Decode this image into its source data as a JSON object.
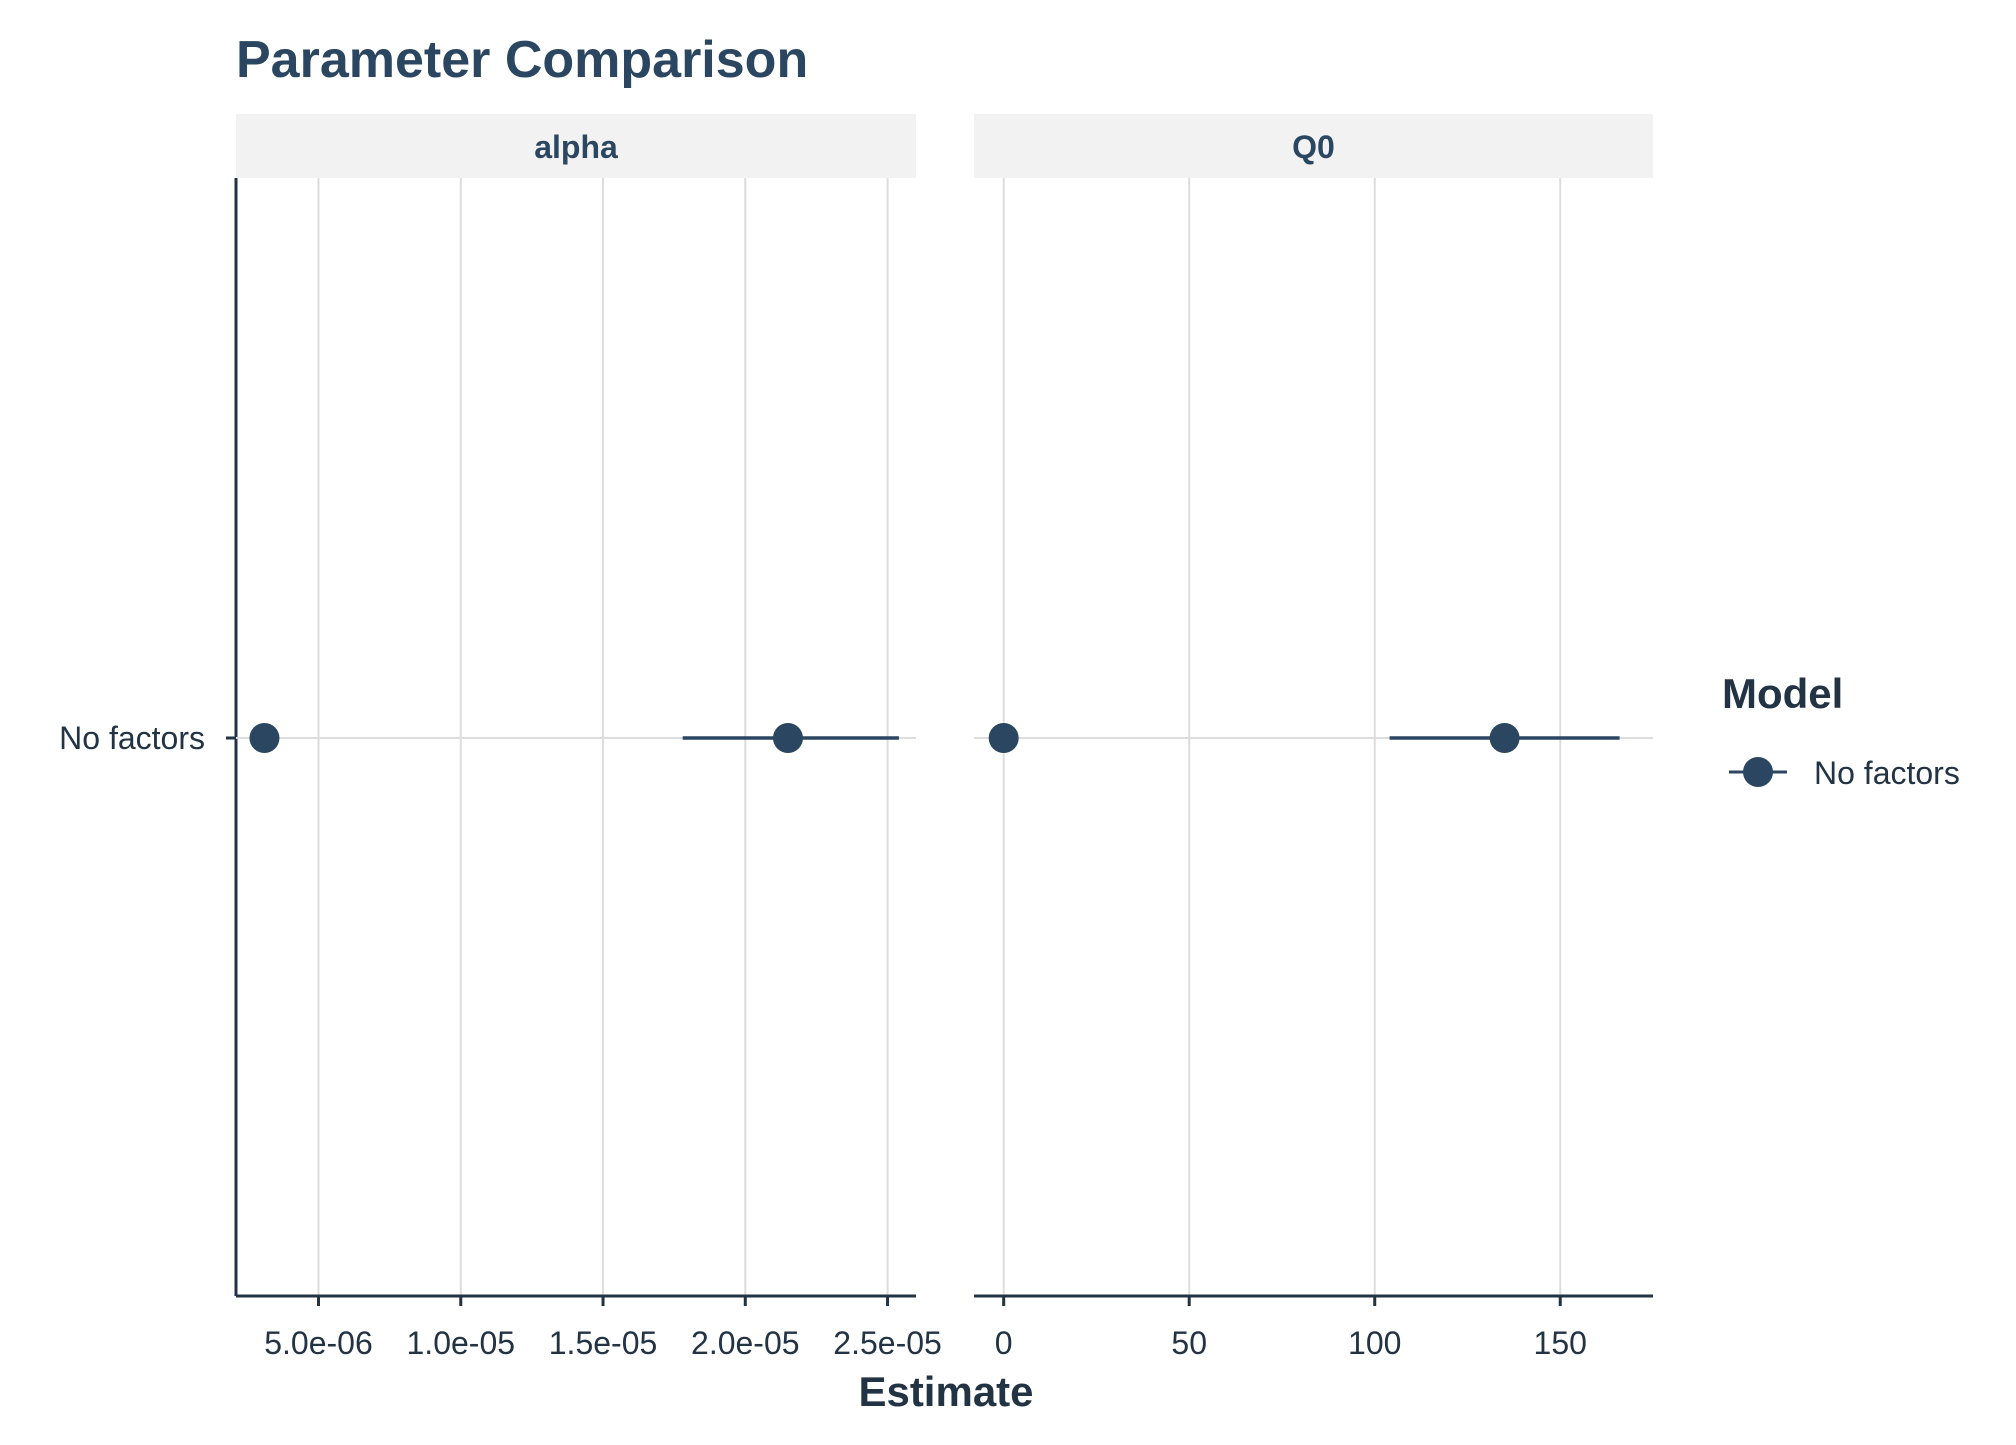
{
  "chart_data": {
    "type": "scatter",
    "title": "Parameter Comparison",
    "xlabel": "Estimate",
    "ylabel": "",
    "categories": [
      "No factors"
    ],
    "grid": true,
    "legend": {
      "title": "Model",
      "position": "right",
      "entries": [
        "No factors"
      ]
    },
    "colors": {
      "series": "#2b4660",
      "text": "#223344",
      "grid": "#dddddd",
      "strip": "#f2f2f2"
    },
    "panels": [
      {
        "name": "alpha",
        "xlim": [
          2.1e-06,
          2.6e-05
        ],
        "ticks": [
          5e-06,
          1e-05,
          1.5e-05,
          2e-05,
          2.5e-05
        ],
        "tick_labels": [
          "5.0e-06",
          "1.0e-05",
          "1.5e-05",
          "2.0e-05",
          "2.5e-05"
        ],
        "series": [
          {
            "name": "No factors",
            "category": "No factors",
            "estimate": 3.1e-06
          },
          {
            "name": "No factors",
            "category": "No factors",
            "estimate": 2.15e-05,
            "ci": [
              1.78e-05,
              2.54e-05
            ]
          }
        ]
      },
      {
        "name": "Q0",
        "xlim": [
          -8,
          175
        ],
        "ticks": [
          0,
          50,
          100,
          150
        ],
        "tick_labels": [
          "0",
          "50",
          "100",
          "150"
        ],
        "series": [
          {
            "name": "No factors",
            "category": "No factors",
            "estimate": 0
          },
          {
            "name": "No factors",
            "category": "No factors",
            "estimate": 135,
            "ci": [
              104,
              166
            ]
          }
        ]
      }
    ]
  }
}
